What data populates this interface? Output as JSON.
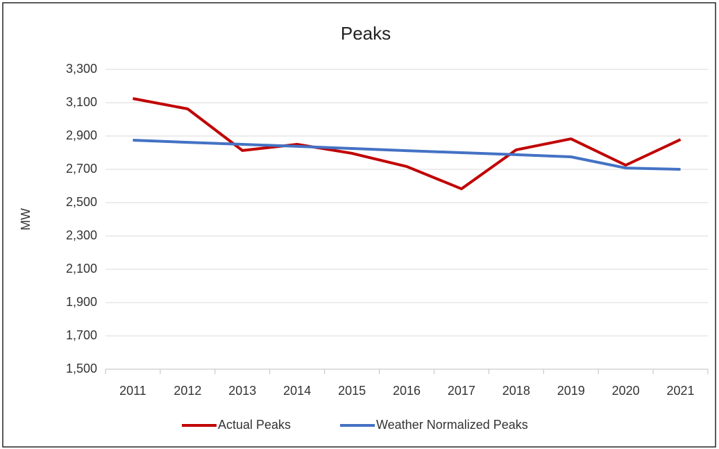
{
  "chart_data": {
    "type": "line",
    "title": "Peaks",
    "ylabel": "MW",
    "categories": [
      "2011",
      "2012",
      "2013",
      "2014",
      "2015",
      "2016",
      "2017",
      "2018",
      "2019",
      "2020",
      "2021"
    ],
    "series": [
      {
        "name": "Actual Peaks",
        "color": "#c00000",
        "values": [
          3125,
          3063,
          2813,
          2850,
          2796,
          2717,
          2583,
          2817,
          2883,
          2725,
          2879
        ]
      },
      {
        "name": "Weather Normalized Peaks",
        "color": "#4472c4",
        "values": [
          2875,
          2862,
          2850,
          2838,
          2825,
          2812,
          2800,
          2788,
          2775,
          2708,
          2700
        ]
      }
    ],
    "ylim": [
      1500,
      3300
    ],
    "yticks": [
      {
        "value": 1500,
        "label": "1,500"
      },
      {
        "value": 1700,
        "label": "1,700"
      },
      {
        "value": 1900,
        "label": "1,900"
      },
      {
        "value": 2100,
        "label": "2,100"
      },
      {
        "value": 2300,
        "label": "2,300"
      },
      {
        "value": 2500,
        "label": "2,500"
      },
      {
        "value": 2700,
        "label": "2,700"
      },
      {
        "value": 2900,
        "label": "2,900"
      },
      {
        "value": 3100,
        "label": "3,100"
      },
      {
        "value": 3300,
        "label": "3,300"
      }
    ],
    "grid": true,
    "legend": "bottom"
  }
}
